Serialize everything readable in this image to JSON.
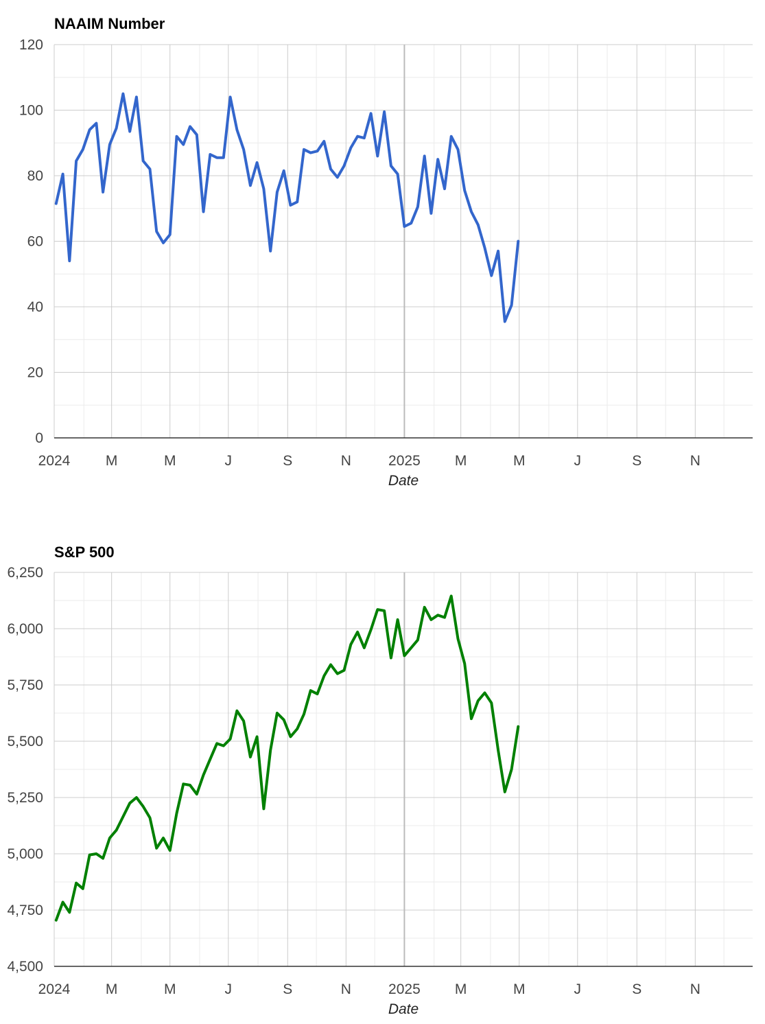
{
  "chart_data": [
    {
      "type": "line",
      "title": "NAAIM Number",
      "xlabel": "Date",
      "ylabel": "",
      "ylim": [
        0,
        120
      ],
      "y_ticks": [
        "0",
        "20",
        "40",
        "60",
        "80",
        "100",
        "120"
      ],
      "x_ticks": [
        "2024",
        "M",
        "M",
        "J",
        "S",
        "N",
        "2025",
        "M",
        "M",
        "J",
        "S",
        "N"
      ],
      "x_range": [
        "2024-01-01",
        "2025-12-31"
      ],
      "grid": true,
      "color": "#3366cc",
      "series": [
        {
          "x": [
            "2024-01-03",
            "2024-01-10",
            "2024-01-17",
            "2024-01-24",
            "2024-01-31",
            "2024-02-07",
            "2024-02-14",
            "2024-02-21",
            "2024-02-28",
            "2024-03-06",
            "2024-03-13",
            "2024-03-20",
            "2024-03-27",
            "2024-04-03",
            "2024-04-10",
            "2024-04-17",
            "2024-04-24",
            "2024-05-01",
            "2024-05-08",
            "2024-05-15",
            "2024-05-22",
            "2024-05-29",
            "2024-06-05",
            "2024-06-12",
            "2024-06-19",
            "2024-06-26",
            "2024-07-03",
            "2024-07-10",
            "2024-07-17",
            "2024-07-24",
            "2024-07-31",
            "2024-08-07",
            "2024-08-14",
            "2024-08-21",
            "2024-08-28",
            "2024-09-04",
            "2024-09-11",
            "2024-09-18",
            "2024-09-25",
            "2024-10-02",
            "2024-10-09",
            "2024-10-16",
            "2024-10-23",
            "2024-10-30",
            "2024-11-06",
            "2024-11-13",
            "2024-11-20",
            "2024-11-27",
            "2024-12-04",
            "2024-12-11",
            "2024-12-18",
            "2024-12-25",
            "2025-01-01",
            "2025-01-08",
            "2025-01-15",
            "2025-01-22",
            "2025-01-29",
            "2025-02-05",
            "2025-02-12",
            "2025-02-19",
            "2025-02-26",
            "2025-03-05",
            "2025-03-12",
            "2025-03-19",
            "2025-03-26",
            "2025-04-02",
            "2025-04-09",
            "2025-04-16",
            "2025-04-23",
            "2025-04-30"
          ],
          "y": [
            71.5,
            80.5,
            54,
            84.5,
            88,
            94,
            96,
            75,
            89.5,
            94.5,
            105,
            93.5,
            104,
            84.5,
            82,
            63,
            59.5,
            62,
            92,
            89.5,
            95,
            92.5,
            69,
            86.5,
            85.5,
            85.5,
            104,
            94,
            88,
            77,
            84,
            76,
            57,
            75,
            81.5,
            71,
            72,
            88,
            87,
            87.5,
            90.5,
            82,
            79.5,
            83,
            88.5,
            92,
            91.5,
            99,
            86,
            99.5,
            83,
            80.5,
            64.5,
            65.5,
            70.5,
            86,
            68.5,
            85,
            76,
            92,
            88,
            75.5,
            69,
            65,
            58,
            49.5,
            57,
            35.5,
            40.5,
            60
          ]
        }
      ]
    },
    {
      "type": "line",
      "title": "S&P 500",
      "xlabel": "Date",
      "ylabel": "",
      "ylim": [
        4500,
        6250
      ],
      "y_ticks": [
        "4,500",
        "4,750",
        "5,000",
        "5,250",
        "5,500",
        "5,750",
        "6,000",
        "6,250"
      ],
      "x_ticks": [
        "2024",
        "M",
        "M",
        "J",
        "S",
        "N",
        "2025",
        "M",
        "M",
        "J",
        "S",
        "N"
      ],
      "x_range": [
        "2024-01-01",
        "2025-12-31"
      ],
      "grid": true,
      "color": "#008000",
      "series": [
        {
          "x": [
            "2024-01-03",
            "2024-01-10",
            "2024-01-17",
            "2024-01-24",
            "2024-01-31",
            "2024-02-07",
            "2024-02-14",
            "2024-02-21",
            "2024-02-28",
            "2024-03-06",
            "2024-03-13",
            "2024-03-20",
            "2024-03-27",
            "2024-04-03",
            "2024-04-10",
            "2024-04-17",
            "2024-04-24",
            "2024-05-01",
            "2024-05-08",
            "2024-05-15",
            "2024-05-22",
            "2024-05-29",
            "2024-06-05",
            "2024-06-12",
            "2024-06-19",
            "2024-06-26",
            "2024-07-03",
            "2024-07-10",
            "2024-07-17",
            "2024-07-24",
            "2024-07-31",
            "2024-08-07",
            "2024-08-14",
            "2024-08-21",
            "2024-08-28",
            "2024-09-04",
            "2024-09-11",
            "2024-09-18",
            "2024-09-25",
            "2024-10-02",
            "2024-10-09",
            "2024-10-16",
            "2024-10-23",
            "2024-10-30",
            "2024-11-06",
            "2024-11-13",
            "2024-11-20",
            "2024-11-27",
            "2024-12-04",
            "2024-12-11",
            "2024-12-18",
            "2024-12-25",
            "2025-01-01",
            "2025-01-08",
            "2025-01-15",
            "2025-01-22",
            "2025-01-29",
            "2025-02-05",
            "2025-02-12",
            "2025-02-19",
            "2025-02-26",
            "2025-03-05",
            "2025-03-12",
            "2025-03-19",
            "2025-03-26",
            "2025-04-02",
            "2025-04-09",
            "2025-04-16",
            "2025-04-23",
            "2025-04-30"
          ],
          "y": [
            4705,
            4785,
            4740,
            4870,
            4845,
            4995,
            5000,
            4980,
            5070,
            5105,
            5165,
            5225,
            5250,
            5210,
            5160,
            5025,
            5070,
            5015,
            5180,
            5310,
            5305,
            5265,
            5350,
            5420,
            5490,
            5480,
            5510,
            5635,
            5590,
            5430,
            5520,
            5200,
            5460,
            5625,
            5595,
            5520,
            5555,
            5620,
            5725,
            5710,
            5790,
            5840,
            5800,
            5815,
            5930,
            5985,
            5915,
            5995,
            6085,
            6080,
            5870,
            6040,
            5880,
            5915,
            5950,
            6095,
            6040,
            6060,
            6050,
            6145,
            5955,
            5845,
            5600,
            5680,
            5715,
            5670,
            5460,
            5275,
            5375,
            5565
          ]
        }
      ]
    }
  ]
}
